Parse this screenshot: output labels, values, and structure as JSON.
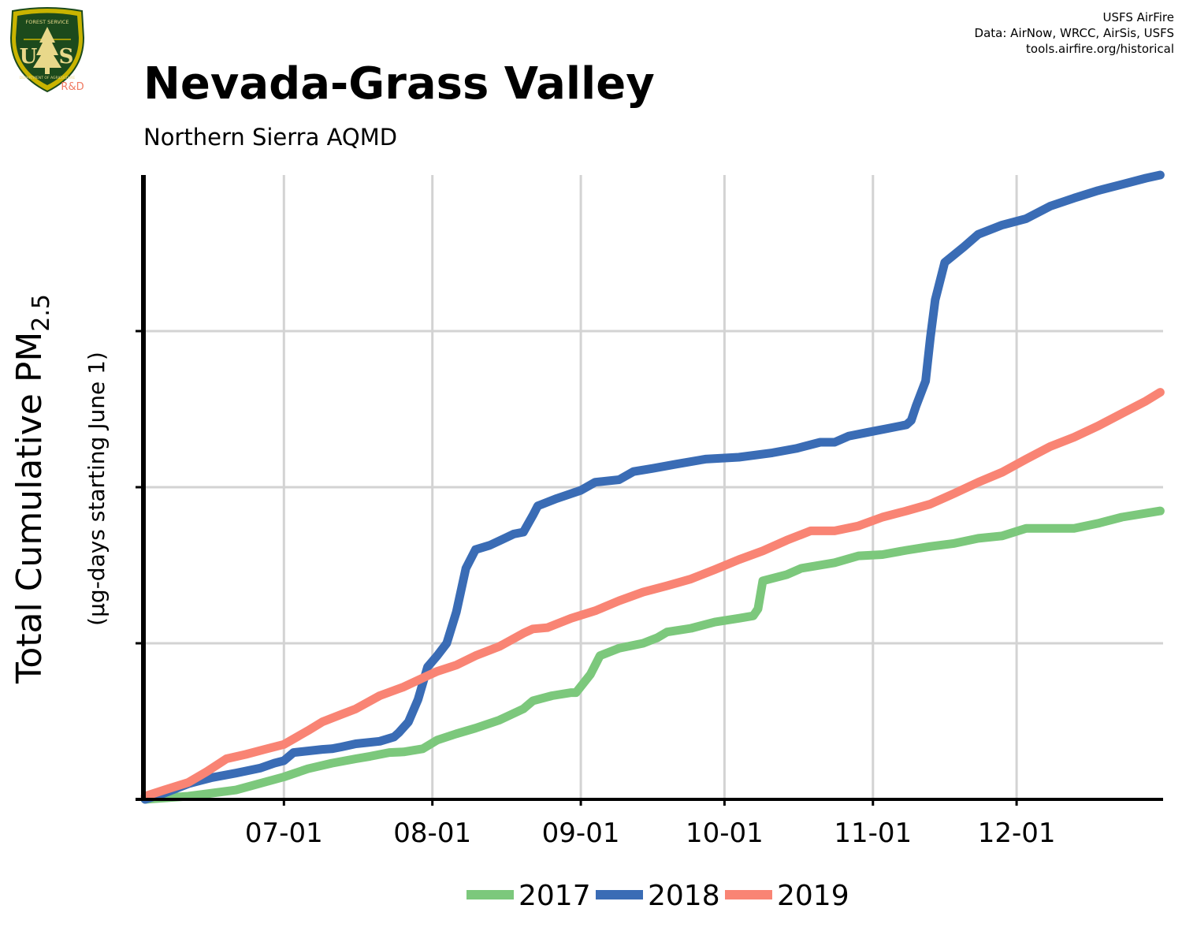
{
  "header": {
    "title": "Nevada-Grass Valley",
    "subtitle": "Northern Sierra AQMD",
    "credits": [
      "USFS AirFire",
      "Data: AirNow, WRCC, AirSis, USFS",
      "tools.airfire.org/historical"
    ],
    "logo_text": {
      "top": "FOREST SERVICE",
      "bottom": "DEPARTMENT OF AGRICULTURE",
      "letters_left": "U",
      "letters_right": "S",
      "rd": "R&D"
    }
  },
  "colors": {
    "y2017": "#7cc87c",
    "y2018": "#3a6cb5",
    "y2019": "#f98474",
    "grid": "#d3d3d3",
    "axis": "#000000"
  },
  "chart_data": {
    "type": "line",
    "ylabel_main": "Total Cumulative PM",
    "ylabel_sub": "2.5",
    "ylabel_units": "(µg-days starting June 1)",
    "xlabel": "",
    "x_ticks": [
      "07-01",
      "08-01",
      "09-01",
      "10-01",
      "11-01",
      "12-01"
    ],
    "x_tick_days": [
      30,
      61,
      92,
      122,
      153,
      183
    ],
    "xlim_days": [
      0,
      213
    ],
    "ylim_fraction": [
      0,
      1
    ],
    "y_gridlines_fraction": [
      0.25,
      0.5,
      0.75
    ],
    "grid": true,
    "legend_position": "bottom",
    "series": [
      {
        "name": "2017",
        "color_key": "y2017",
        "points": [
          [
            1,
            0.0
          ],
          [
            10,
            0.005
          ],
          [
            20,
            0.015
          ],
          [
            30,
            0.036
          ],
          [
            35,
            0.049
          ],
          [
            40,
            0.058
          ],
          [
            45,
            0.065
          ],
          [
            48,
            0.069
          ],
          [
            52,
            0.075
          ],
          [
            55,
            0.076
          ],
          [
            59,
            0.081
          ],
          [
            62,
            0.095
          ],
          [
            66,
            0.105
          ],
          [
            70,
            0.114
          ],
          [
            75,
            0.127
          ],
          [
            80,
            0.145
          ],
          [
            82,
            0.158
          ],
          [
            86,
            0.166
          ],
          [
            90,
            0.171
          ],
          [
            91,
            0.171
          ],
          [
            94,
            0.2
          ],
          [
            96,
            0.23
          ],
          [
            100,
            0.242
          ],
          [
            105,
            0.25
          ],
          [
            108,
            0.259
          ],
          [
            110,
            0.268
          ],
          [
            115,
            0.274
          ],
          [
            120,
            0.284
          ],
          [
            125,
            0.29
          ],
          [
            128,
            0.294
          ],
          [
            129,
            0.305
          ],
          [
            130,
            0.35
          ],
          [
            135,
            0.36
          ],
          [
            138,
            0.37
          ],
          [
            145,
            0.379
          ],
          [
            150,
            0.39
          ],
          [
            155,
            0.392
          ],
          [
            160,
            0.399
          ],
          [
            165,
            0.405
          ],
          [
            170,
            0.41
          ],
          [
            175,
            0.418
          ],
          [
            180,
            0.422
          ],
          [
            185,
            0.434
          ],
          [
            190,
            0.434
          ],
          [
            195,
            0.434
          ],
          [
            200,
            0.442
          ],
          [
            205,
            0.452
          ],
          [
            213,
            0.462
          ]
        ]
      },
      {
        "name": "2018",
        "color_key": "y2018",
        "points": [
          [
            1,
            0.0
          ],
          [
            5,
            0.01
          ],
          [
            10,
            0.025
          ],
          [
            15,
            0.035
          ],
          [
            20,
            0.042
          ],
          [
            25,
            0.05
          ],
          [
            28,
            0.058
          ],
          [
            30,
            0.062
          ],
          [
            32,
            0.075
          ],
          [
            38,
            0.08
          ],
          [
            40,
            0.081
          ],
          [
            42,
            0.084
          ],
          [
            45,
            0.089
          ],
          [
            50,
            0.093
          ],
          [
            53,
            0.1
          ],
          [
            54,
            0.107
          ],
          [
            56,
            0.124
          ],
          [
            58,
            0.16
          ],
          [
            60,
            0.212
          ],
          [
            62,
            0.23
          ],
          [
            64,
            0.25
          ],
          [
            66,
            0.3
          ],
          [
            68,
            0.37
          ],
          [
            70,
            0.4
          ],
          [
            73,
            0.407
          ],
          [
            78,
            0.425
          ],
          [
            80,
            0.428
          ],
          [
            82,
            0.455
          ],
          [
            83,
            0.47
          ],
          [
            87,
            0.482
          ],
          [
            92,
            0.495
          ],
          [
            95,
            0.508
          ],
          [
            100,
            0.512
          ],
          [
            103,
            0.525
          ],
          [
            107,
            0.53
          ],
          [
            112,
            0.537
          ],
          [
            118,
            0.545
          ],
          [
            125,
            0.548
          ],
          [
            132,
            0.555
          ],
          [
            137,
            0.562
          ],
          [
            142,
            0.572
          ],
          [
            145,
            0.572
          ],
          [
            148,
            0.582
          ],
          [
            152,
            0.588
          ],
          [
            156,
            0.594
          ],
          [
            160,
            0.6
          ],
          [
            161,
            0.607
          ],
          [
            162,
            0.63
          ],
          [
            164,
            0.67
          ],
          [
            165,
            0.74
          ],
          [
            166,
            0.8
          ],
          [
            168,
            0.86
          ],
          [
            172,
            0.885
          ],
          [
            175,
            0.905
          ],
          [
            180,
            0.92
          ],
          [
            185,
            0.93
          ],
          [
            190,
            0.95
          ],
          [
            195,
            0.963
          ],
          [
            200,
            0.975
          ],
          [
            205,
            0.985
          ],
          [
            210,
            0.995
          ],
          [
            213,
            1.0
          ]
        ]
      },
      {
        "name": "2019",
        "color_key": "y2019",
        "points": [
          [
            1,
            0.005
          ],
          [
            5,
            0.015
          ],
          [
            10,
            0.027
          ],
          [
            14,
            0.045
          ],
          [
            18,
            0.065
          ],
          [
            22,
            0.072
          ],
          [
            26,
            0.08
          ],
          [
            30,
            0.088
          ],
          [
            35,
            0.11
          ],
          [
            38,
            0.124
          ],
          [
            42,
            0.136
          ],
          [
            45,
            0.145
          ],
          [
            50,
            0.166
          ],
          [
            55,
            0.18
          ],
          [
            60,
            0.198
          ],
          [
            62,
            0.205
          ],
          [
            66,
            0.215
          ],
          [
            70,
            0.23
          ],
          [
            75,
            0.245
          ],
          [
            80,
            0.266
          ],
          [
            82,
            0.273
          ],
          [
            85,
            0.275
          ],
          [
            90,
            0.29
          ],
          [
            95,
            0.302
          ],
          [
            100,
            0.318
          ],
          [
            105,
            0.332
          ],
          [
            110,
            0.342
          ],
          [
            115,
            0.353
          ],
          [
            120,
            0.368
          ],
          [
            125,
            0.384
          ],
          [
            130,
            0.398
          ],
          [
            135,
            0.415
          ],
          [
            140,
            0.43
          ],
          [
            145,
            0.43
          ],
          [
            150,
            0.438
          ],
          [
            155,
            0.452
          ],
          [
            160,
            0.462
          ],
          [
            165,
            0.473
          ],
          [
            170,
            0.49
          ],
          [
            175,
            0.508
          ],
          [
            180,
            0.524
          ],
          [
            185,
            0.545
          ],
          [
            190,
            0.565
          ],
          [
            195,
            0.58
          ],
          [
            200,
            0.598
          ],
          [
            205,
            0.618
          ],
          [
            210,
            0.638
          ],
          [
            213,
            0.652
          ]
        ]
      }
    ]
  }
}
